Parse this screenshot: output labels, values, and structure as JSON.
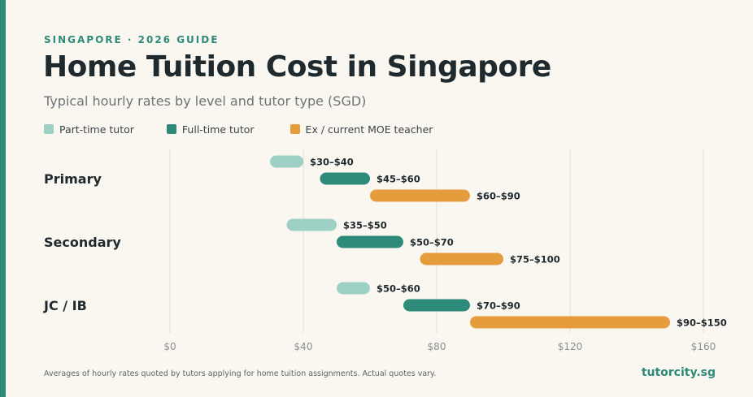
{
  "header": {
    "eyebrow": "SINGAPORE · 2026 GUIDE",
    "title": "Home Tuition Cost in Singapore",
    "subtitle": "Typical hourly rates by level and tutor type (SGD)"
  },
  "colors": {
    "part_time": "#9fd0c6",
    "full_time": "#2e8b7a",
    "moe": "#e59c3c",
    "accent": "#2e8b7a",
    "background": "#faf6f0"
  },
  "chart_data": {
    "type": "bar",
    "orientation": "horizontal-range",
    "categories": [
      "Primary",
      "Secondary",
      "JC / IB"
    ],
    "series": [
      {
        "name": "Part-time tutor",
        "color": "#9fd0c6",
        "ranges": [
          [
            30,
            40
          ],
          [
            35,
            50
          ],
          [
            50,
            60
          ]
        ],
        "labels": [
          "$30–$40",
          "$35–$50",
          "$50–$60"
        ]
      },
      {
        "name": "Full-time tutor",
        "color": "#2e8b7a",
        "ranges": [
          [
            45,
            60
          ],
          [
            50,
            70
          ],
          [
            70,
            90
          ]
        ],
        "labels": [
          "$45–$60",
          "$50–$70",
          "$70–$90"
        ]
      },
      {
        "name": "Ex / current MOE teacher",
        "color": "#e59c3c",
        "ranges": [
          [
            60,
            90
          ],
          [
            75,
            100
          ],
          [
            90,
            150
          ]
        ],
        "labels": [
          "$60–$90",
          "$75–$100",
          "$90–$150"
        ]
      }
    ],
    "xlim": [
      0,
      160
    ],
    "xticks": [
      0,
      40,
      80,
      120,
      160
    ],
    "xtick_labels": [
      "$0",
      "$40",
      "$80",
      "$120",
      "$160"
    ],
    "grid": "vertical",
    "legend_position": "top-left"
  },
  "footer": {
    "note": "Averages of hourly rates quoted by tutors applying for home tuition assignments. Actual quotes vary.",
    "brand": "tutorcity.sg"
  }
}
